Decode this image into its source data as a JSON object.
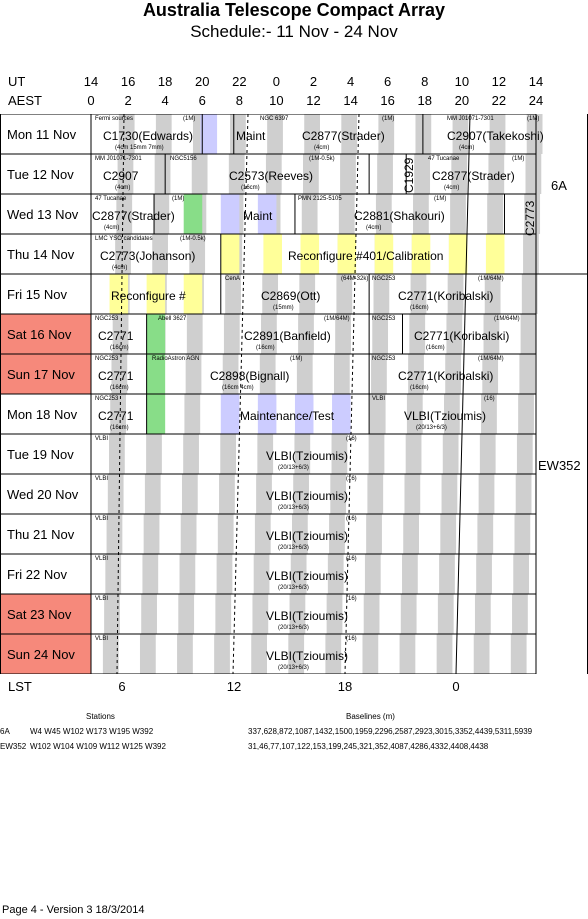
{
  "title": "Australia Telescope Compact Array",
  "subtitle": "Schedule:- 11 Nov - 24 Nov",
  "axis": {
    "ut_label": "UT",
    "aest_label": "AEST",
    "ut_ticks": [
      "14",
      "16",
      "18",
      "20",
      "22",
      "0",
      "2",
      "4",
      "6",
      "8",
      "10",
      "12",
      "14"
    ],
    "aest_ticks": [
      "0",
      "2",
      "4",
      "6",
      "8",
      "10",
      "12",
      "14",
      "16",
      "18",
      "20",
      "22",
      "24"
    ],
    "lst_label": "LST",
    "lst_ticks": [
      "6",
      "12",
      "18",
      "0"
    ]
  },
  "days": [
    {
      "label": "Mon  11 Nov",
      "weekend": false
    },
    {
      "label": "Tue  12 Nov",
      "weekend": false
    },
    {
      "label": "Wed  13 Nov",
      "weekend": false
    },
    {
      "label": "Thu  14 Nov",
      "weekend": false
    },
    {
      "label": "Fri   15 Nov",
      "weekend": false
    },
    {
      "label": "Sat   16 Nov",
      "weekend": true
    },
    {
      "label": "Sun  17 Nov",
      "weekend": true
    },
    {
      "label": "Mon  18 Nov",
      "weekend": false
    },
    {
      "label": "Tue   19 Nov",
      "weekend": false
    },
    {
      "label": "Wed  20 Nov",
      "weekend": false
    },
    {
      "label": "Thu   21 Nov",
      "weekend": false
    },
    {
      "label": "Fri    22 Nov",
      "weekend": false
    },
    {
      "label": "Sat    23 Nov",
      "weekend": true
    },
    {
      "label": "Sun   24 Nov",
      "weekend": true
    }
  ],
  "blocks": [
    {
      "row": 0,
      "label": "C1730(Edwards)",
      "small": "Fermi sources",
      "note": "(1M)",
      "sub": "(4cm 15mm 7mm)"
    },
    {
      "row": 0,
      "label": "Maint",
      "small": "",
      "note": "",
      "sub": ""
    },
    {
      "row": 0,
      "label": "C2877(Strader)",
      "small": "NGC 6397",
      "note": "(1M)",
      "sub": "(4cm)"
    },
    {
      "row": 0,
      "label": "C2907(Takekoshi)",
      "small": "MM J01071-7301",
      "note": "(1M)",
      "sub": "(4cm)"
    },
    {
      "row": 1,
      "label": "C2907",
      "small": "MM J01071-7301",
      "note": "",
      "sub": "(4cm)"
    },
    {
      "row": 1,
      "label": "C2573(Reeves)",
      "small": "NGC5156",
      "note": "(1M-0.5k)",
      "sub": "(16cm)"
    },
    {
      "row": 1,
      "label": "C1929",
      "small": "",
      "note": "",
      "sub": ""
    },
    {
      "row": 1,
      "label": "C2877(Strader)",
      "small": "47 Tucanae",
      "note": "(1M)",
      "sub": "(4cm)"
    },
    {
      "row": 2,
      "label": "C2877(Strader)",
      "small": "47 Tucanae",
      "note": "(1M)",
      "sub": "(4cm)"
    },
    {
      "row": 2,
      "label": "Maint",
      "small": "",
      "note": "",
      "sub": ""
    },
    {
      "row": 2,
      "label": "C2881(Shakouri)",
      "small": "PMN 2125-5105",
      "note": "(1M)",
      "sub": "(4cm)"
    },
    {
      "row": 2,
      "label": "C2773",
      "small": "",
      "note": "",
      "sub": ""
    },
    {
      "row": 3,
      "label": "C2773(Johanson)",
      "small": "LMC YSO candidates",
      "note": "(1M-0.5k)",
      "sub": "(4cm)"
    },
    {
      "row": 3,
      "label": "Reconfigure #401/Calibration",
      "small": "",
      "note": "",
      "sub": ""
    },
    {
      "row": 4,
      "label": "Reconfigure #",
      "small": "",
      "note": "",
      "sub": ""
    },
    {
      "row": 4,
      "label": "C2869(Ott)",
      "small": "CenA",
      "note": "(64M-32k)",
      "sub": "(15mm)"
    },
    {
      "row": 4,
      "label": "C2771(Koribalski)",
      "small": "NGC253",
      "note": "(1M/64M)",
      "sub": "(16cm)"
    },
    {
      "row": 5,
      "label": "C2771",
      "small": "NGC253",
      "note": "",
      "sub": "(16cm)"
    },
    {
      "row": 5,
      "label": "C2891(Banfield)",
      "small": "Abell 3627",
      "note": "(1M/64M)",
      "sub": "(16cm)"
    },
    {
      "row": 5,
      "label": "C2771(Koribalski)",
      "small": "NGC253",
      "note": "(1M/64M)",
      "sub": "(16cm)"
    },
    {
      "row": 6,
      "label": "C2771",
      "small": "NGC253",
      "note": "",
      "sub": "(16cm)"
    },
    {
      "row": 6,
      "label": "C2898(Bignall)",
      "small": "RadioAstron AGN",
      "note": "(1M)",
      "sub": "(16cm 4cm)"
    },
    {
      "row": 6,
      "label": "C2771(Koribalski)",
      "small": "NGC253",
      "note": "(1M/64M)",
      "sub": "(16cm)"
    },
    {
      "row": 7,
      "label": "C2771",
      "small": "NGC253",
      "note": "",
      "sub": "(16cm)"
    },
    {
      "row": 7,
      "label": "Maintenance/Test",
      "small": "",
      "note": "",
      "sub": ""
    },
    {
      "row": 7,
      "label": "VLBI(Tzioumis)",
      "small": "VLBI",
      "note": "(16)",
      "sub": "(20/13+6/3)"
    },
    {
      "row": 8,
      "label": "VLBI(Tzioumis)",
      "small": "VLBI",
      "note": "(16)",
      "sub": "(20/13+6/3)"
    },
    {
      "row": 9,
      "label": "VLBI(Tzioumis)",
      "small": "VLBI",
      "note": "(16)",
      "sub": "(20/13+6/3)"
    },
    {
      "row": 10,
      "label": "VLBI(Tzioumis)",
      "small": "VLBI",
      "note": "(16)",
      "sub": "(20/13+6/3)"
    },
    {
      "row": 11,
      "label": "VLBI(Tzioumis)",
      "small": "VLBI",
      "note": "(16)",
      "sub": "(20/13+6/3)"
    },
    {
      "row": 12,
      "label": "VLBI(Tzioumis)",
      "small": "VLBI",
      "note": "(16)",
      "sub": "(20/13+6/3)"
    },
    {
      "row": 13,
      "label": "VLBI(Tzioumis)",
      "small": "VLBI",
      "note": "(16)",
      "sub": "(20/13+6/3)"
    }
  ],
  "configs": [
    "6A",
    "EW352"
  ],
  "stations": {
    "header_stations": "Stations",
    "header_baselines": "Baselines (m)",
    "rows": [
      {
        "config": "6A",
        "stations": "W4 W45 W102 W173 W195 W392",
        "baselines": "337,628,872,1087,1432,1500,1959,2296,2587,2923,3015,3352,4439,5311,5939"
      },
      {
        "config": "EW352",
        "stations": "W102 W104 W109 W112 W125 W392",
        "baselines": "31,46,77,107,122,153,199,245,321,352,4087,4286,4332,4408,4438"
      }
    ]
  },
  "footer": "Page 4 - Version 3  18/3/2014",
  "colors": {
    "weekend": "#f6897b",
    "stripe": "#cfcfcf",
    "calib": "#ffff99",
    "maint": "#ccccff",
    "green": "#88dd88"
  }
}
